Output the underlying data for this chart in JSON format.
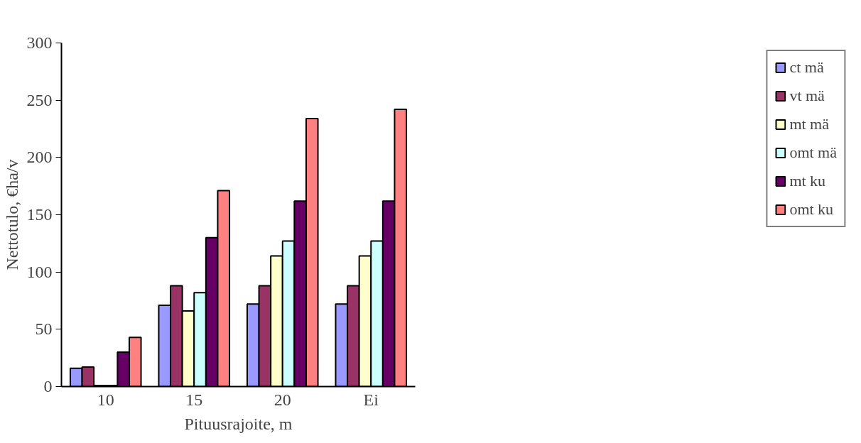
{
  "chart_data": {
    "type": "bar",
    "xlabel": "Pituusrajoite, m",
    "ylabel": "Nettotulo, €ha/v",
    "categories": [
      "10",
      "15",
      "20",
      "Ei"
    ],
    "series": [
      {
        "name": "ct mä",
        "color": "#9999ff",
        "values": [
          16,
          71,
          72,
          72
        ]
      },
      {
        "name": "vt mä",
        "color": "#993366",
        "values": [
          17,
          88,
          88,
          88
        ]
      },
      {
        "name": "mt mä",
        "color": "#ffffcc",
        "values": [
          1,
          66,
          114,
          114
        ]
      },
      {
        "name": "omt mä",
        "color": "#ccffff",
        "values": [
          1,
          82,
          127,
          127
        ]
      },
      {
        "name": "mt ku",
        "color": "#660066",
        "values": [
          30,
          130,
          162,
          162
        ]
      },
      {
        "name": "omt ku",
        "color": "#ff8080",
        "values": [
          43,
          171,
          234,
          242
        ]
      }
    ],
    "ylim": [
      0,
      300
    ],
    "yticks": [
      0,
      50,
      100,
      150,
      200,
      250,
      300
    ],
    "grid": false,
    "legend": "right"
  }
}
